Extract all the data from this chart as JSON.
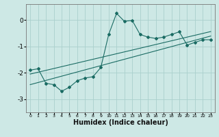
{
  "title": "",
  "xlabel": "Humidex (Indice chaleur)",
  "bg_color": "#cde8e5",
  "grid_color": "#aad0cc",
  "line_color": "#1a6b63",
  "x_data": [
    0,
    1,
    2,
    3,
    4,
    5,
    6,
    7,
    8,
    9,
    10,
    11,
    12,
    13,
    14,
    15,
    16,
    17,
    18,
    19,
    20,
    21,
    22,
    23
  ],
  "y_main": [
    -1.9,
    -1.85,
    -2.4,
    -2.45,
    -2.7,
    -2.55,
    -2.3,
    -2.2,
    -2.15,
    -1.8,
    -0.55,
    0.25,
    -0.05,
    -0.02,
    -0.55,
    -0.65,
    -0.7,
    -0.65,
    -0.55,
    -0.45,
    -0.95,
    -0.85,
    -0.75,
    -0.75
  ],
  "y_line1": [
    -2.05,
    -1.98,
    -1.91,
    -1.84,
    -1.77,
    -1.7,
    -1.63,
    -1.56,
    -1.49,
    -1.42,
    -1.35,
    -1.28,
    -1.21,
    -1.14,
    -1.07,
    -1.0,
    -0.93,
    -0.86,
    -0.79,
    -0.72,
    -0.65,
    -0.58,
    -0.51,
    -0.44
  ],
  "y_line2": [
    -2.45,
    -2.37,
    -2.29,
    -2.21,
    -2.13,
    -2.05,
    -1.97,
    -1.89,
    -1.81,
    -1.73,
    -1.65,
    -1.57,
    -1.49,
    -1.41,
    -1.33,
    -1.25,
    -1.17,
    -1.09,
    -1.01,
    -0.93,
    -0.85,
    -0.77,
    -0.69,
    -0.61
  ],
  "ylim": [
    -3.5,
    0.6
  ],
  "xlim": [
    -0.5,
    23.5
  ],
  "yticks": [
    0,
    -1,
    -2,
    -3
  ],
  "xticks": [
    0,
    1,
    2,
    3,
    4,
    5,
    6,
    7,
    8,
    9,
    10,
    11,
    12,
    13,
    14,
    15,
    16,
    17,
    18,
    19,
    20,
    21,
    22,
    23
  ]
}
